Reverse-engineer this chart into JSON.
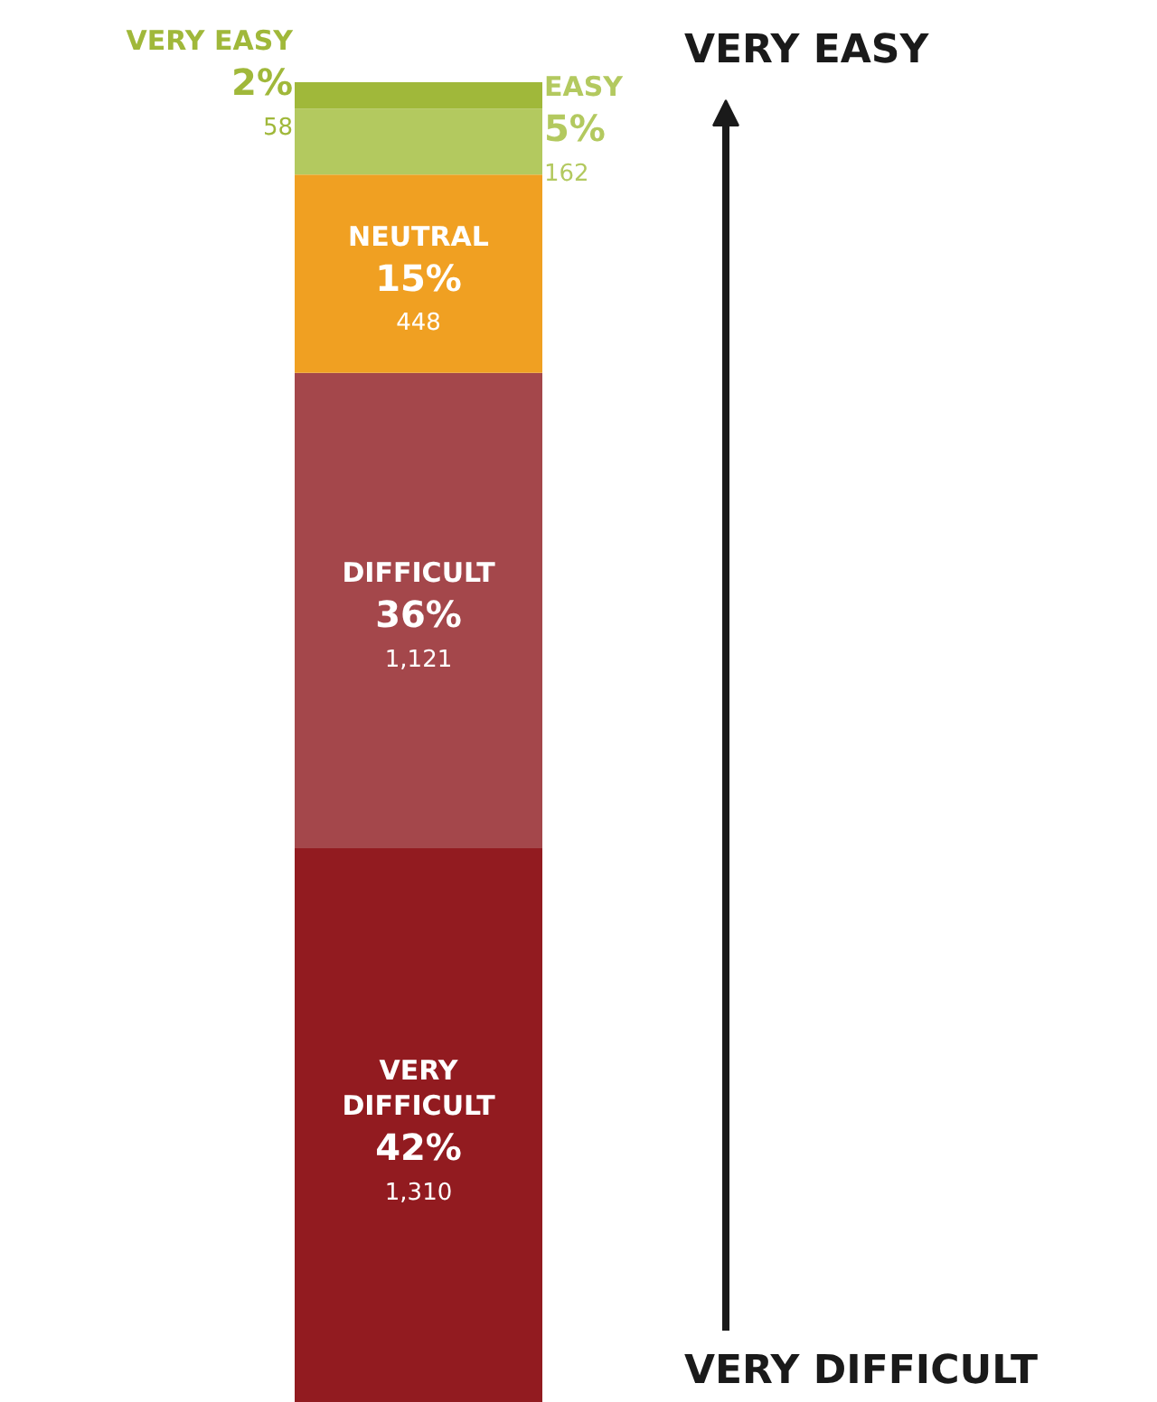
{
  "chart_data": {
    "type": "bar",
    "stacked": true,
    "categories": [
      null
    ],
    "series": [
      {
        "name": "VERY DIFFICULT",
        "color": "#921b20",
        "values": [
          42
        ],
        "value_labels": [
          "42%\n1,310"
        ]
      },
      {
        "name": "DIFFICULT",
        "color": "#a4474b",
        "values": [
          36
        ],
        "value_labels": [
          "36%\n1,121"
        ]
      },
      {
        "name": "NEUTRAL",
        "color": "#f0a022",
        "values": [
          15
        ],
        "value_labels": [
          "15%\n448"
        ]
      },
      {
        "name": "EASY",
        "color": "#b3c95f",
        "values": [
          5
        ],
        "value_labels": [
          "5%\n162"
        ]
      },
      {
        "name": "VERY EASY",
        "color": "#a0b83a",
        "values": [
          2
        ],
        "value_labels": [
          "2%\n58"
        ]
      }
    ],
    "annotations": [
      "VERY EASY",
      "VERY DIFFICULT"
    ],
    "grid": false
  }
}
